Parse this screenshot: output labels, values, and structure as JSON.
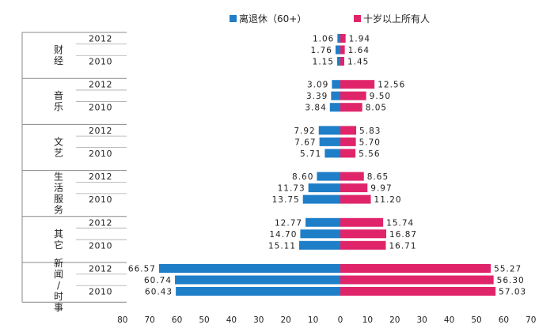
{
  "chart_data": {
    "type": "bar",
    "orientation": "horizontal-butterfly",
    "legend": {
      "position": "top",
      "entries": [
        {
          "key": "retired",
          "label": "离退休（60+）",
          "color": "#1f7ec8"
        },
        {
          "key": "all",
          "label": "十岁以上所有人",
          "color": "#e0246a"
        }
      ]
    },
    "x_ticks": [
      "80",
      "70",
      "60",
      "50",
      "40",
      "30",
      "20",
      "10",
      "0",
      "10",
      "20",
      "30",
      "40",
      "50",
      "60",
      "70"
    ],
    "xlim_left": [
      0,
      80
    ],
    "xlim_right": [
      0,
      70
    ],
    "grid": false,
    "groups": [
      {
        "category": "财经",
        "rows": [
          {
            "year": "2012",
            "retired": 1.06,
            "all": 1.94
          },
          {
            "year": "",
            "retired": 1.76,
            "all": 1.64
          },
          {
            "year": "2010",
            "retired": 1.15,
            "all": 1.45
          }
        ]
      },
      {
        "category": "音乐",
        "rows": [
          {
            "year": "2012",
            "retired": 3.09,
            "all": 12.56
          },
          {
            "year": "",
            "retired": 3.39,
            "all": 9.5
          },
          {
            "year": "2010",
            "retired": 3.84,
            "all": 8.05
          }
        ]
      },
      {
        "category": "文艺",
        "rows": [
          {
            "year": "2012",
            "retired": 7.92,
            "all": 5.83
          },
          {
            "year": "",
            "retired": 7.67,
            "all": 5.7
          },
          {
            "year": "2010",
            "retired": 5.71,
            "all": 5.56
          }
        ]
      },
      {
        "category": "生活服务",
        "rows": [
          {
            "year": "2012",
            "retired": 8.6,
            "all": 8.65
          },
          {
            "year": "",
            "retired": 11.73,
            "all": 9.97
          },
          {
            "year": "2010",
            "retired": 13.75,
            "all": 11.2
          }
        ]
      },
      {
        "category": "其它",
        "rows": [
          {
            "year": "2012",
            "retired": 12.77,
            "all": 15.74
          },
          {
            "year": "",
            "retired": 14.7,
            "all": 16.87
          },
          {
            "year": "2010",
            "retired": 15.11,
            "all": 16.71
          }
        ]
      },
      {
        "category": "新闻/时事",
        "rows": [
          {
            "year": "2012",
            "retired": 66.57,
            "all": 55.27
          },
          {
            "year": "",
            "retired": 60.74,
            "all": 56.3
          },
          {
            "year": "2010",
            "retired": 60.43,
            "all": 57.03
          }
        ]
      }
    ]
  }
}
